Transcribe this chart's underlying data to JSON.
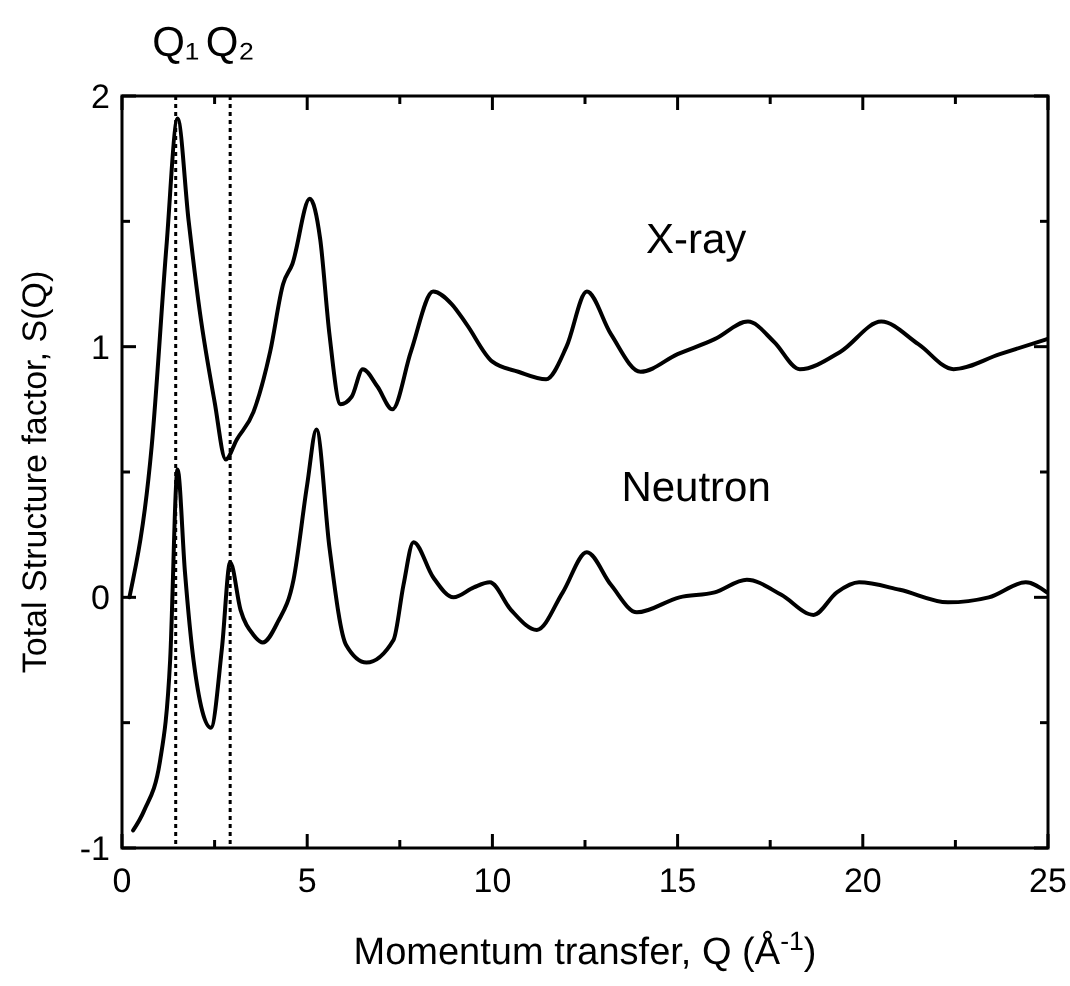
{
  "chart_data": {
    "type": "line",
    "xlabel": "Momentum transfer, Q (Å$^{-1}$)",
    "ylabel": "Total Structure factor, S(Q)",
    "xlim": [
      0,
      25
    ],
    "ylim": [
      -1,
      2
    ],
    "xticks": [
      0,
      {
        "value": 2.5,
        "label": null
      },
      5,
      {
        "value": 7.5,
        "label": null
      },
      10,
      {
        "value": 12.5,
        "label": null
      },
      15,
      {
        "value": 17.5,
        "label": null
      },
      20,
      {
        "value": 22.5,
        "label": null
      },
      25
    ],
    "yticks": [
      -1,
      {
        "value": -0.5,
        "label": null
      },
      0,
      {
        "value": 0.5,
        "label": null
      },
      1,
      {
        "value": 1.5,
        "label": null
      },
      2
    ],
    "legend": false,
    "grid": false,
    "marker": "none",
    "line_style": "solid",
    "ref_lines": [
      {
        "axis": "x",
        "value": 1.45,
        "label": "Q₁",
        "line_style": "dotted",
        "color": "#000000"
      },
      {
        "axis": "x",
        "value": 2.92,
        "label": "Q₂",
        "line_style": "dotted",
        "color": "#000000"
      }
    ],
    "series": [
      {
        "name": "X-ray",
        "color": "#000000",
        "x": [
          0.2,
          0.8,
          1.2,
          1.5,
          1.8,
          2.1,
          2.5,
          2.8,
          3.1,
          3.55,
          4.0,
          4.35,
          4.6,
          5.07,
          5.35,
          5.6,
          5.9,
          6.2,
          6.5,
          6.9,
          7.3,
          7.8,
          8.4,
          8.9,
          9.3,
          10.0,
          10.7,
          11.45,
          12.0,
          12.55,
          13.2,
          14.0,
          15.0,
          16.0,
          16.9,
          17.6,
          18.3,
          19.4,
          20.5,
          21.5,
          22.45,
          23.7,
          24.97
        ],
        "values": [
          0.0,
          0.6,
          1.4,
          1.91,
          1.5,
          1.14,
          0.78,
          0.55,
          0.63,
          0.74,
          0.98,
          1.25,
          1.33,
          1.59,
          1.43,
          1.05,
          0.77,
          0.8,
          0.91,
          0.84,
          0.75,
          0.98,
          1.22,
          1.17,
          1.09,
          0.94,
          0.9,
          0.87,
          1.0,
          1.22,
          1.05,
          0.9,
          0.97,
          1.03,
          1.1,
          1.02,
          0.91,
          0.98,
          1.1,
          1.01,
          0.91,
          0.97,
          1.03
        ]
      },
      {
        "name": "Neutron",
        "color": "#000000",
        "x": [
          0.3,
          0.6,
          1.03,
          1.3,
          1.5,
          1.7,
          1.93,
          2.4,
          2.7,
          2.92,
          3.2,
          3.55,
          3.8,
          4.2,
          4.63,
          5.0,
          5.25,
          5.6,
          6.05,
          6.6,
          7.33,
          7.6,
          7.87,
          8.4,
          8.95,
          9.5,
          9.93,
          10.5,
          11.2,
          11.9,
          12.55,
          13.2,
          13.9,
          15.05,
          16.0,
          16.87,
          17.8,
          18.67,
          19.3,
          19.9,
          21.0,
          22.3,
          23.4,
          24.4,
          24.97
        ],
        "values": [
          -0.93,
          -0.85,
          -0.65,
          -0.25,
          0.51,
          0.1,
          -0.25,
          -0.52,
          -0.2,
          0.14,
          -0.05,
          -0.15,
          -0.18,
          -0.1,
          0.07,
          0.45,
          0.67,
          0.2,
          -0.19,
          -0.26,
          -0.17,
          0.05,
          0.22,
          0.08,
          0.0,
          0.04,
          0.06,
          -0.05,
          -0.13,
          0.02,
          0.18,
          0.05,
          -0.06,
          0.0,
          0.02,
          0.07,
          0.01,
          -0.07,
          0.02,
          0.06,
          0.03,
          -0.02,
          0.0,
          0.06,
          0.02
        ]
      }
    ]
  }
}
